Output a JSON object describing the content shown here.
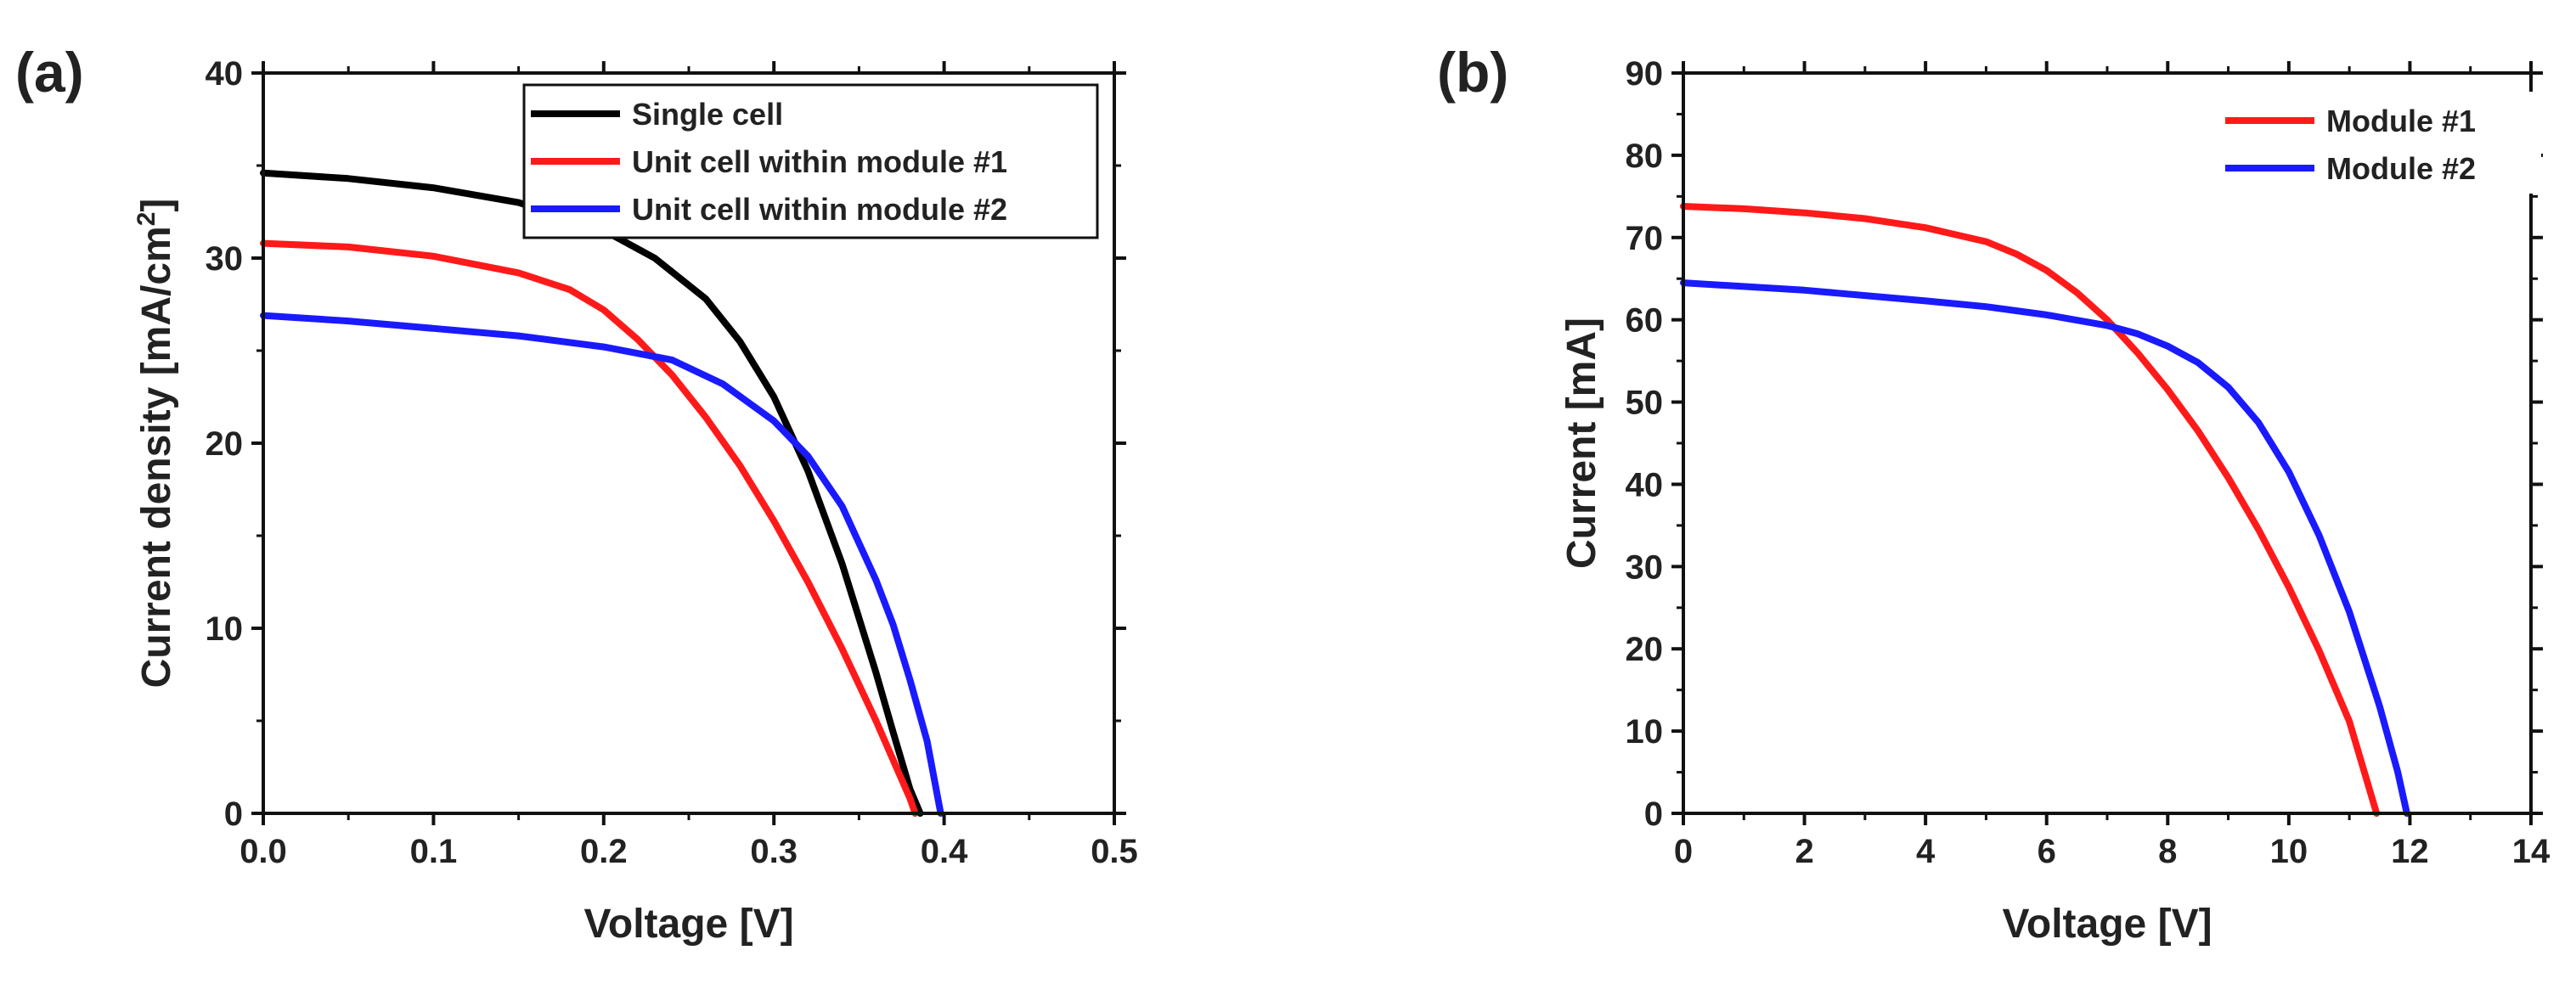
{
  "chart_data": [
    {
      "type": "line",
      "panel_label": "(a)",
      "xlabel": "Voltage [V]",
      "ylabel": "Current density [mA/cm",
      "ylabel_superscript": "2",
      "ylabel_close": "]",
      "xlim": [
        0.0,
        0.5
      ],
      "ylim": [
        0,
        40
      ],
      "xticks": [
        0.0,
        0.1,
        0.2,
        0.3,
        0.4,
        0.5
      ],
      "xtick_labels": [
        "0.0",
        "0.1",
        "0.2",
        "0.3",
        "0.4",
        "0.5"
      ],
      "yticks": [
        0,
        10,
        20,
        30,
        40
      ],
      "ytick_labels": [
        "0",
        "10",
        "20",
        "30",
        "40"
      ],
      "legend_position": "top-right",
      "series": [
        {
          "name": "Single cell",
          "color": "#000000",
          "x": [
            0,
            0.05,
            0.1,
            0.15,
            0.2,
            0.23,
            0.26,
            0.28,
            0.3,
            0.32,
            0.34,
            0.36,
            0.37,
            0.38,
            0.386
          ],
          "y": [
            34.6,
            34.3,
            33.8,
            33.0,
            31.5,
            30.0,
            27.8,
            25.5,
            22.5,
            18.5,
            13.5,
            7.6,
            4.4,
            1.3,
            0
          ]
        },
        {
          "name": "Unit cell within module #1",
          "color": "#ff1a1a",
          "x": [
            0,
            0.05,
            0.1,
            0.15,
            0.18,
            0.2,
            0.22,
            0.24,
            0.26,
            0.28,
            0.3,
            0.32,
            0.34,
            0.36,
            0.38,
            0.383
          ],
          "y": [
            30.8,
            30.6,
            30.1,
            29.2,
            28.3,
            27.2,
            25.6,
            23.7,
            21.4,
            18.8,
            15.8,
            12.5,
            8.9,
            5.0,
            0.8,
            0
          ]
        },
        {
          "name": "Unit cell within module #2",
          "color": "#1a1aff",
          "x": [
            0,
            0.05,
            0.1,
            0.15,
            0.2,
            0.24,
            0.27,
            0.3,
            0.32,
            0.34,
            0.36,
            0.37,
            0.38,
            0.39,
            0.398
          ],
          "y": [
            26.9,
            26.6,
            26.2,
            25.8,
            25.2,
            24.5,
            23.2,
            21.2,
            19.3,
            16.6,
            12.6,
            10.2,
            7.2,
            3.9,
            0
          ]
        }
      ]
    },
    {
      "type": "line",
      "panel_label": "(b)",
      "xlabel": "Voltage [V]",
      "ylabel": "Current [mA]",
      "xlim": [
        0,
        14
      ],
      "ylim": [
        0,
        90
      ],
      "xticks": [
        0,
        2,
        4,
        6,
        8,
        10,
        12,
        14
      ],
      "xtick_labels": [
        "0",
        "2",
        "4",
        "6",
        "8",
        "10",
        "12",
        "14"
      ],
      "yticks": [
        0,
        10,
        20,
        30,
        40,
        50,
        60,
        70,
        80,
        90
      ],
      "ytick_labels": [
        "0",
        "10",
        "20",
        "30",
        "40",
        "50",
        "60",
        "70",
        "80",
        "90"
      ],
      "legend_position": "top-right",
      "series": [
        {
          "name": "Module #1",
          "color": "#ff1a1a",
          "x": [
            0,
            1,
            2,
            3,
            4,
            5,
            5.5,
            6,
            6.5,
            7,
            7.5,
            8,
            8.5,
            9,
            9.5,
            10,
            10.5,
            11,
            11.45
          ],
          "y": [
            73.8,
            73.5,
            73.0,
            72.3,
            71.2,
            69.5,
            68.0,
            66.0,
            63.3,
            60.0,
            56.0,
            51.5,
            46.5,
            40.8,
            34.5,
            27.5,
            19.8,
            11.2,
            0
          ]
        },
        {
          "name": "Module #2",
          "color": "#1a1aff",
          "x": [
            0,
            2,
            4,
            5,
            6,
            7,
            7.5,
            8,
            8.5,
            9,
            9.5,
            10,
            10.5,
            11,
            11.5,
            11.8,
            11.95
          ],
          "y": [
            64.5,
            63.6,
            62.3,
            61.6,
            60.6,
            59.3,
            58.3,
            56.8,
            54.8,
            51.8,
            47.5,
            41.5,
            33.8,
            24.5,
            13.0,
            5.0,
            0
          ]
        }
      ]
    }
  ]
}
